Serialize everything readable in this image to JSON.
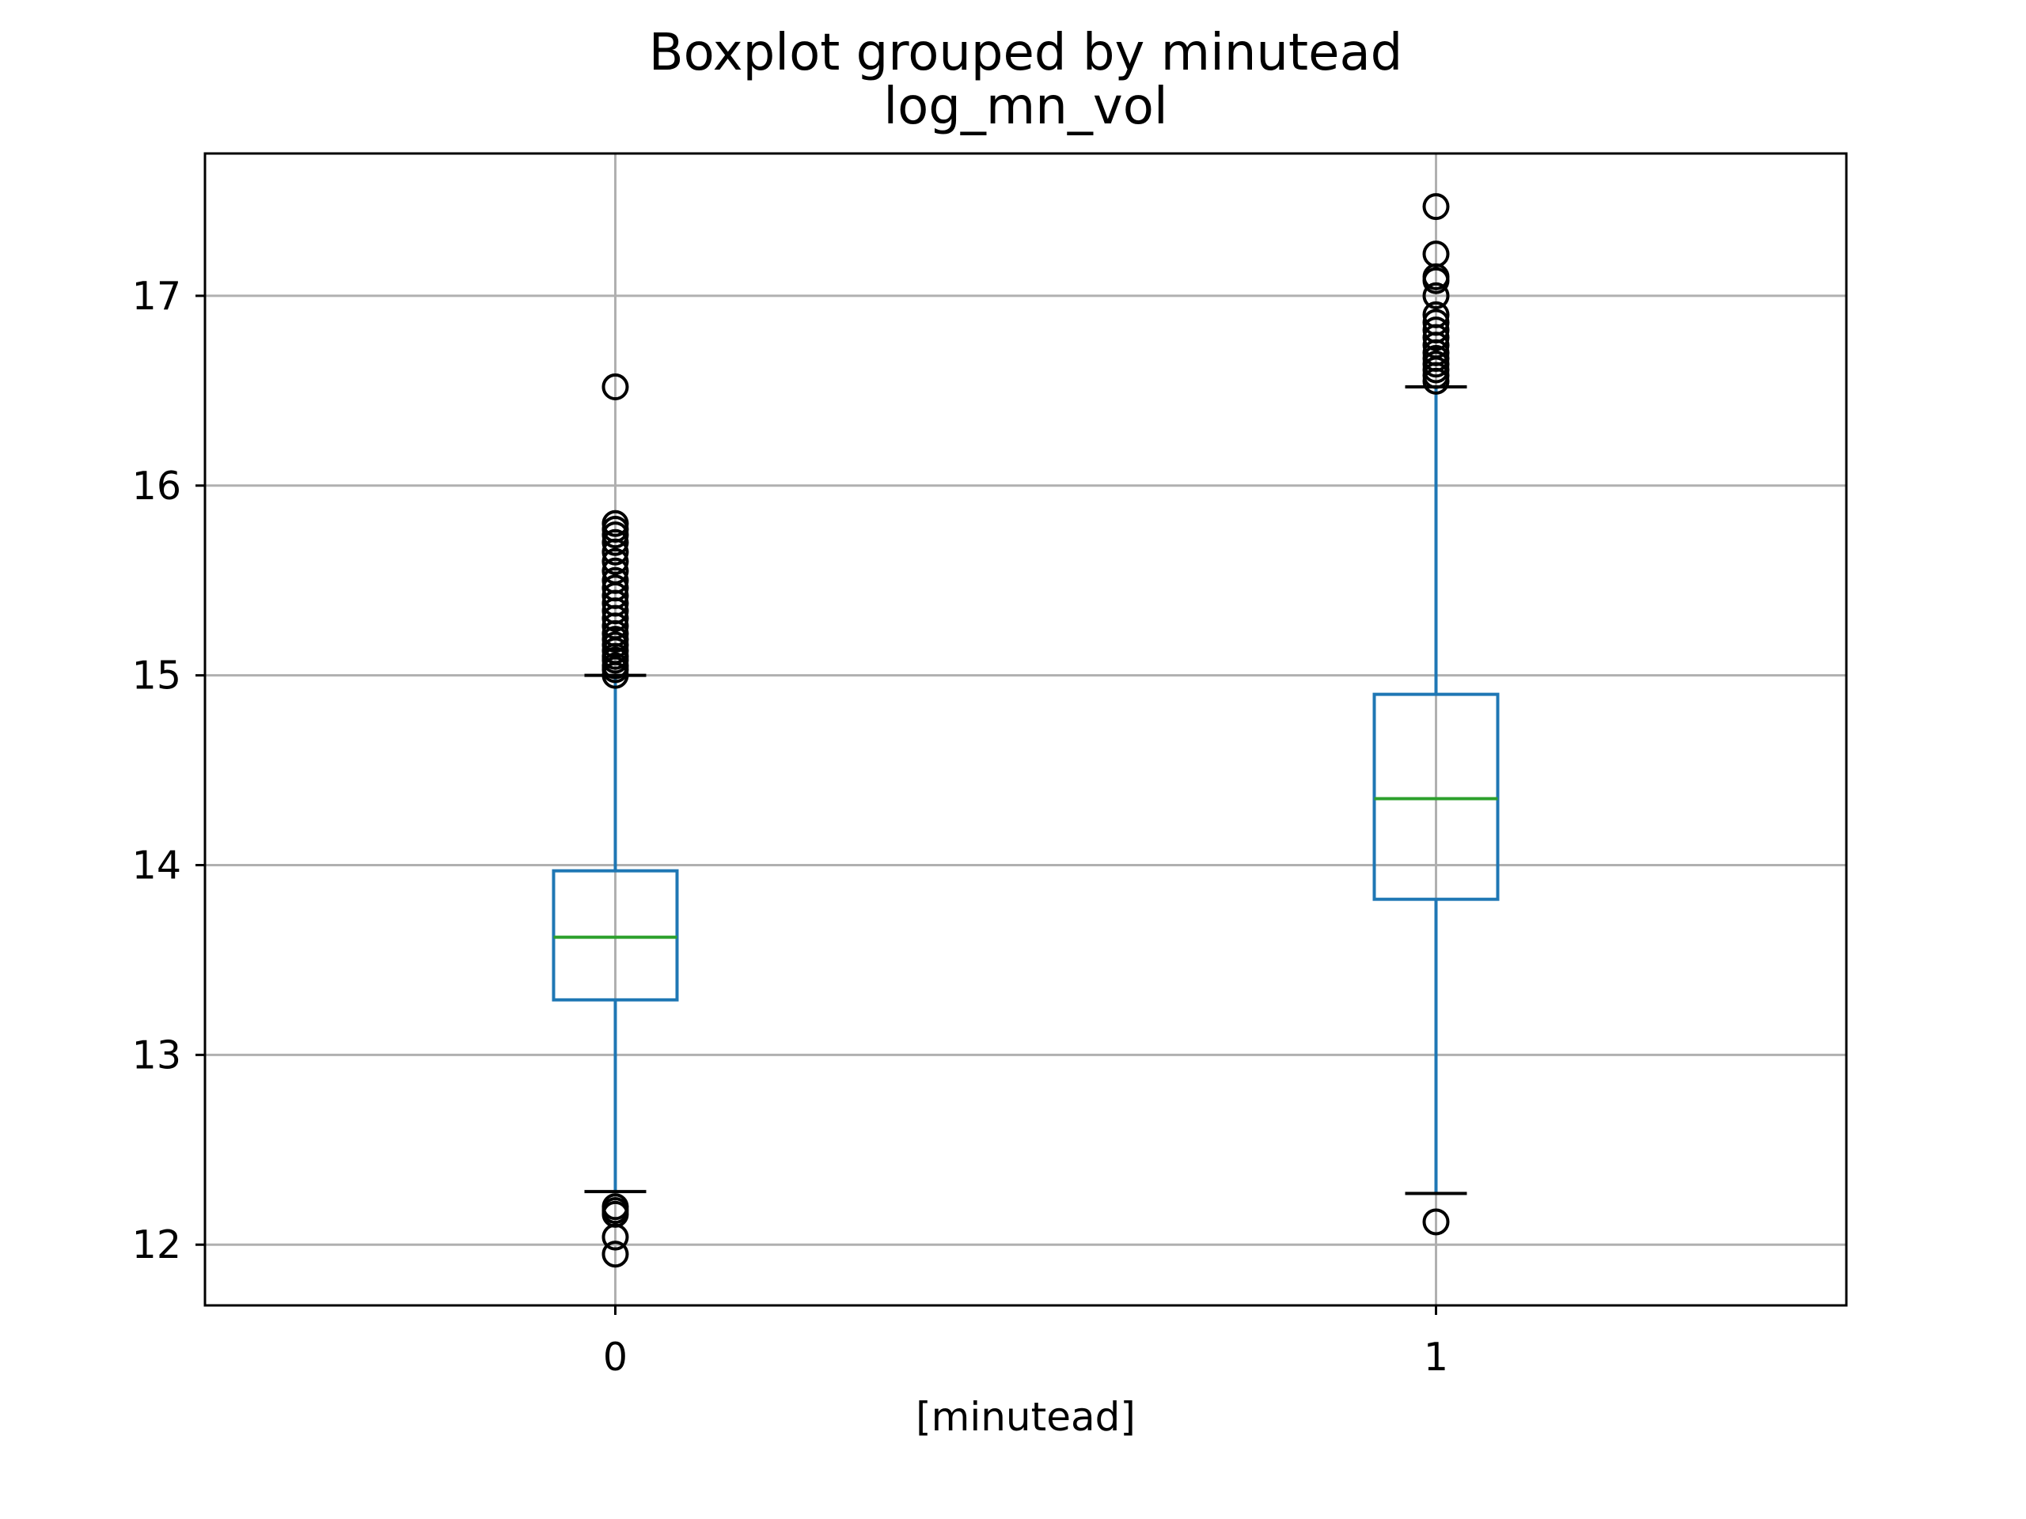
{
  "chart_data": {
    "type": "box",
    "suptitle": "Boxplot grouped by minutead",
    "title": "log_mn_vol",
    "xlabel": "[minutead]",
    "ylabel": "",
    "ylim": [
      11.68,
      17.75
    ],
    "yticks": [
      12,
      13,
      14,
      15,
      16,
      17
    ],
    "categories": [
      "0",
      "1"
    ],
    "grid": true,
    "colors": {
      "box": "#1f77b4",
      "median": "#2ca02c",
      "cap": "#000000",
      "flier": "#000000",
      "grid": "#b0b0b0",
      "frame": "#000000"
    },
    "groups": [
      {
        "label": "0",
        "whisker_low": 12.28,
        "q1": 13.29,
        "median": 13.62,
        "q3": 13.97,
        "whisker_high": 15.0,
        "fliers": [
          11.95,
          12.04,
          12.16,
          12.18,
          12.2,
          15.0,
          15.03,
          15.05,
          15.08,
          15.1,
          15.13,
          15.16,
          15.19,
          15.22,
          15.26,
          15.3,
          15.34,
          15.38,
          15.42,
          15.46,
          15.5,
          15.55,
          15.6,
          15.65,
          15.7,
          15.74,
          15.77,
          15.8,
          16.52
        ]
      },
      {
        "label": "1",
        "whisker_low": 12.27,
        "q1": 13.82,
        "median": 14.35,
        "q3": 14.9,
        "whisker_high": 16.52,
        "fliers": [
          12.12,
          16.55,
          16.58,
          16.61,
          16.64,
          16.67,
          16.7,
          16.74,
          16.78,
          16.82,
          16.86,
          16.9,
          17.0,
          17.08,
          17.1,
          17.22,
          17.47
        ]
      }
    ]
  }
}
